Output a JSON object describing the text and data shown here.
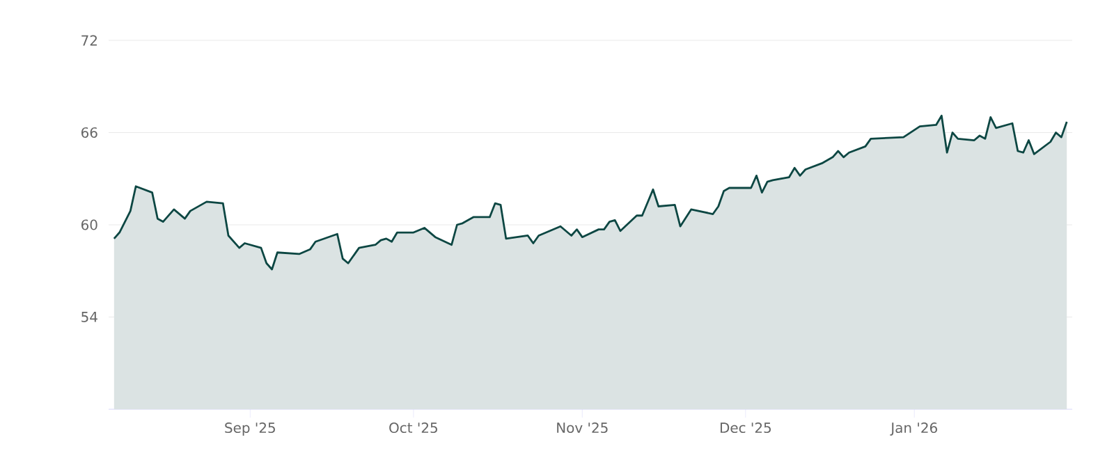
{
  "chart_data": {
    "type": "area",
    "color": "#0d4743",
    "grid": "y",
    "xlim": [
      "2025-08-06",
      "2026-01-30"
    ],
    "ylim": [
      48,
      72
    ],
    "yticks": [
      54,
      60,
      66,
      72
    ],
    "xticks": [
      {
        "value": "2025-09-01",
        "label": "Sep '25"
      },
      {
        "value": "2025-10-01",
        "label": "Oct '25"
      },
      {
        "value": "2025-11-01",
        "label": "Nov '25"
      },
      {
        "value": "2025-12-01",
        "label": "Dec '25"
      },
      {
        "value": "2026-01-01",
        "label": "Jan '26"
      }
    ],
    "x": [
      "2025-08-07",
      "2025-08-08",
      "2025-08-10",
      "2025-08-11",
      "2025-08-14",
      "2025-08-15",
      "2025-08-16",
      "2025-08-18",
      "2025-08-20",
      "2025-08-21",
      "2025-08-24",
      "2025-08-27",
      "2025-08-28",
      "2025-08-30",
      "2025-08-31",
      "2025-09-03",
      "2025-09-04",
      "2025-09-05",
      "2025-09-06",
      "2025-09-10",
      "2025-09-12",
      "2025-09-13",
      "2025-09-17",
      "2025-09-18",
      "2025-09-19",
      "2025-09-21",
      "2025-09-24",
      "2025-09-25",
      "2025-09-26",
      "2025-09-27",
      "2025-09-28",
      "2025-10-01",
      "2025-10-03",
      "2025-10-05",
      "2025-10-08",
      "2025-10-09",
      "2025-10-10",
      "2025-10-12",
      "2025-10-15",
      "2025-10-16",
      "2025-10-17",
      "2025-10-18",
      "2025-10-22",
      "2025-10-23",
      "2025-10-24",
      "2025-10-28",
      "2025-10-30",
      "2025-10-31",
      "2025-11-01",
      "2025-11-04",
      "2025-11-05",
      "2025-11-06",
      "2025-11-07",
      "2025-11-08",
      "2025-11-11",
      "2025-11-12",
      "2025-11-14",
      "2025-11-15",
      "2025-11-18",
      "2025-11-19",
      "2025-11-21",
      "2025-11-25",
      "2025-11-26",
      "2025-11-27",
      "2025-11-28",
      "2025-12-02",
      "2025-12-03",
      "2025-12-04",
      "2025-12-05",
      "2025-12-06",
      "2025-12-09",
      "2025-12-10",
      "2025-12-11",
      "2025-12-12",
      "2025-12-15",
      "2025-12-17",
      "2025-12-18",
      "2025-12-19",
      "2025-12-20",
      "2025-12-23",
      "2025-12-24",
      "2025-12-30",
      "2026-01-02",
      "2026-01-05",
      "2026-01-06",
      "2026-01-07",
      "2026-01-08",
      "2026-01-09",
      "2026-01-12",
      "2026-01-13",
      "2026-01-14",
      "2026-01-15",
      "2026-01-16",
      "2026-01-19",
      "2026-01-20",
      "2026-01-21",
      "2026-01-22",
      "2026-01-23",
      "2026-01-26",
      "2026-01-27",
      "2026-01-28",
      "2026-01-29"
    ],
    "values": [
      59.1,
      59.5,
      60.9,
      62.5,
      62.1,
      60.4,
      60.2,
      61.0,
      60.4,
      60.9,
      61.5,
      61.4,
      59.3,
      58.5,
      58.8,
      58.5,
      57.5,
      57.1,
      58.2,
      58.1,
      58.4,
      58.9,
      59.4,
      57.8,
      57.5,
      58.5,
      58.7,
      59.0,
      59.1,
      58.9,
      59.5,
      59.5,
      59.8,
      59.2,
      58.7,
      60.0,
      60.1,
      60.5,
      60.5,
      61.4,
      61.3,
      59.1,
      59.3,
      58.8,
      59.3,
      59.9,
      59.3,
      59.7,
      59.2,
      59.7,
      59.7,
      60.2,
      60.3,
      59.6,
      60.6,
      60.6,
      62.3,
      61.2,
      61.3,
      59.9,
      61.0,
      60.7,
      61.2,
      62.2,
      62.4,
      62.4,
      63.2,
      62.1,
      62.8,
      62.9,
      63.1,
      63.7,
      63.2,
      63.6,
      64.0,
      64.4,
      64.8,
      64.4,
      64.7,
      65.1,
      65.6,
      65.7,
      66.4,
      66.5,
      67.1,
      64.7,
      66.0,
      65.6,
      65.5,
      65.8,
      65.6,
      67.0,
      66.3,
      66.6,
      64.8,
      64.7,
      65.5,
      64.6,
      65.4,
      66.0,
      65.7,
      66.7
    ]
  }
}
